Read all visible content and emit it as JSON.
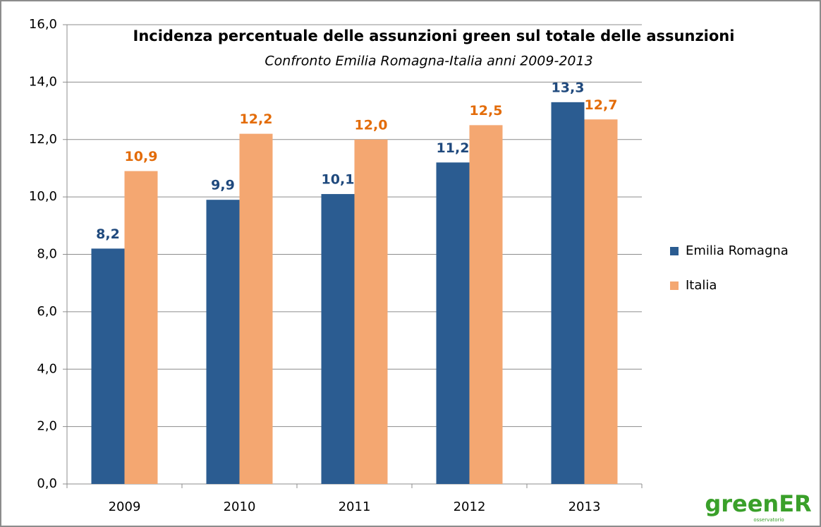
{
  "chart_data": {
    "type": "bar",
    "title": "Incidenza percentuale delle assunzioni green sul totale delle assunzioni",
    "subtitle": "Confronto Emilia Romagna-Italia anni 2009-2013",
    "categories": [
      "2009",
      "2010",
      "2011",
      "2012",
      "2013"
    ],
    "series": [
      {
        "name": "Emilia Romagna",
        "color": "#2b5c91",
        "label_color": "#1f497d",
        "values": [
          8.2,
          9.9,
          10.1,
          11.2,
          13.3
        ],
        "value_labels": [
          "8,2",
          "9,9",
          "10,1",
          "11,2",
          "13,3"
        ]
      },
      {
        "name": "Italia",
        "color": "#f4a771",
        "label_color": "#e36c09",
        "values": [
          10.9,
          12.2,
          12.0,
          12.5,
          12.7
        ],
        "value_labels": [
          "10,9",
          "12,2",
          "12,0",
          "12,5",
          "12,7"
        ]
      }
    ],
    "ylim": [
      0,
      16
    ],
    "yticks": [
      {
        "value": 0,
        "label": "0,0"
      },
      {
        "value": 2,
        "label": "2,0"
      },
      {
        "value": 4,
        "label": "4,0"
      },
      {
        "value": 6,
        "label": "6,0"
      },
      {
        "value": 8,
        "label": "8,0"
      },
      {
        "value": 10,
        "label": "10,0"
      },
      {
        "value": 12,
        "label": "12,0"
      },
      {
        "value": 14,
        "label": "14,0"
      },
      {
        "value": 16,
        "label": "16,0"
      }
    ],
    "grid": true,
    "legend": "right",
    "logo": "greenER",
    "logo_subtitle": "osservatorio"
  }
}
